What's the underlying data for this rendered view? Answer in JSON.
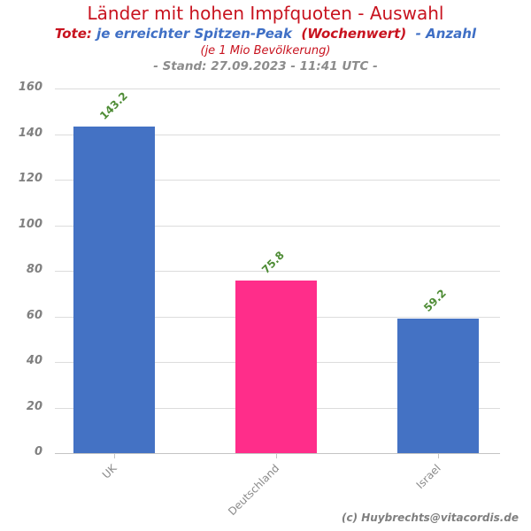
{
  "colors": {
    "red_text": "#C8131F",
    "blue_text": "#3F6FC5",
    "stand_gray": "#8C8C8C",
    "credit_gray": "#7F7F7F",
    "axis_label_gray": "#808080",
    "x_label_gray": "#8A8A8A",
    "gridline": "#DCDCDC",
    "axis_line": "#C4C4C4",
    "value_label_green": "#4E8C35",
    "bar_blue": "#4472C4",
    "bar_pink": "#FF2D8A"
  },
  "header": {
    "title": "Länder mit hohen Impfquoten - Auswahl",
    "subtitle_segments": [
      {
        "text": "Tote:",
        "color": "#C8131F"
      },
      {
        "text": " je erreichter Spitzen-Peak ",
        "color": "#3F6FC5"
      },
      {
        "text": " (Wochenwert) ",
        "color": "#C8131F"
      },
      {
        "text": " - Anzahl",
        "color": "#3F6FC5"
      }
    ],
    "note": "(je 1 Mio Bevölkerung)",
    "stand": "- Stand: 27.09.2023 - 11:41 UTC -"
  },
  "footer": {
    "credit": "(c) Huybrechts@vitacordis.de"
  },
  "chart_data": {
    "type": "bar",
    "title": "Länder mit hohen Impfquoten - Auswahl",
    "subtitle": "Tote: je erreichter Spitzen-Peak (Wochenwert) - Anzahl",
    "note": "(je 1 Mio Bevölkerung)",
    "stand": "- Stand: 27.09.2023 - 11:41 UTC -",
    "categories": [
      "UK",
      "Deutschland",
      "Israel"
    ],
    "values": [
      143.2,
      75.8,
      59.2
    ],
    "value_labels": [
      "143.2",
      "75.8",
      "59.2"
    ],
    "bar_colors": [
      "#4472C4",
      "#FF2D8A",
      "#4472C4"
    ],
    "xlabel": "",
    "ylabel": "",
    "ylim": [
      0,
      160
    ],
    "ytick_step": 20,
    "grid": true,
    "legend": false
  }
}
